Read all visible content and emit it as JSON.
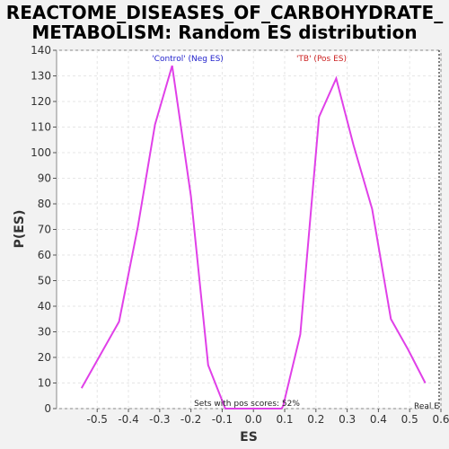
{
  "chart_data": {
    "type": "line",
    "title_line1": "REACTOME_DISEASES_OF_CARBOHYDRATE_",
    "title_line2": "METABOLISM: Random ES distribution",
    "xlabel": "ES",
    "ylabel": "P(ES)",
    "xlim": [
      -0.63,
      0.6
    ],
    "ylim": [
      0,
      140
    ],
    "x_ticks": [
      -0.5,
      -0.4,
      -0.3,
      -0.2,
      -0.1,
      0.0,
      0.1,
      0.2,
      0.3,
      0.4,
      0.5,
      0.6
    ],
    "x_tick_labels": [
      "-0.5",
      "-0.4",
      "-0.3",
      "-0.2",
      "-0.1",
      "0.0",
      "0.1",
      "0.2",
      "0.3",
      "0.4",
      "0.5",
      "0.6"
    ],
    "y_ticks": [
      0,
      10,
      20,
      30,
      40,
      50,
      60,
      70,
      80,
      90,
      100,
      110,
      120,
      130,
      140
    ],
    "y_tick_labels": [
      "0",
      "10",
      "20",
      "30",
      "40",
      "50",
      "60",
      "70",
      "80",
      "90",
      "100",
      "110",
      "120",
      "130",
      "140"
    ],
    "grid": true,
    "line_color": "#e040e8",
    "series": [
      {
        "x": [
          -0.55,
          -0.43,
          -0.37,
          -0.315,
          -0.26,
          -0.2,
          -0.145,
          -0.09,
          -0.03,
          0.03,
          0.09,
          0.095,
          0.15,
          0.21,
          0.265,
          0.32,
          0.38,
          0.44,
          0.495,
          0.55
        ],
        "y": [
          8,
          34,
          71,
          111,
          134,
          83,
          17,
          0,
          0,
          0,
          0,
          1,
          29,
          114,
          129,
          103,
          78,
          35,
          23,
          10
        ]
      }
    ],
    "annotations": {
      "neg_label": "'Control' (Neg ES)",
      "neg_color": "#2222cc",
      "pos_label": "'TB' (Pos ES)",
      "pos_color": "#cc2222",
      "bottom_note": "Sets with pos scores: 52%",
      "real_label": "Real E"
    }
  }
}
